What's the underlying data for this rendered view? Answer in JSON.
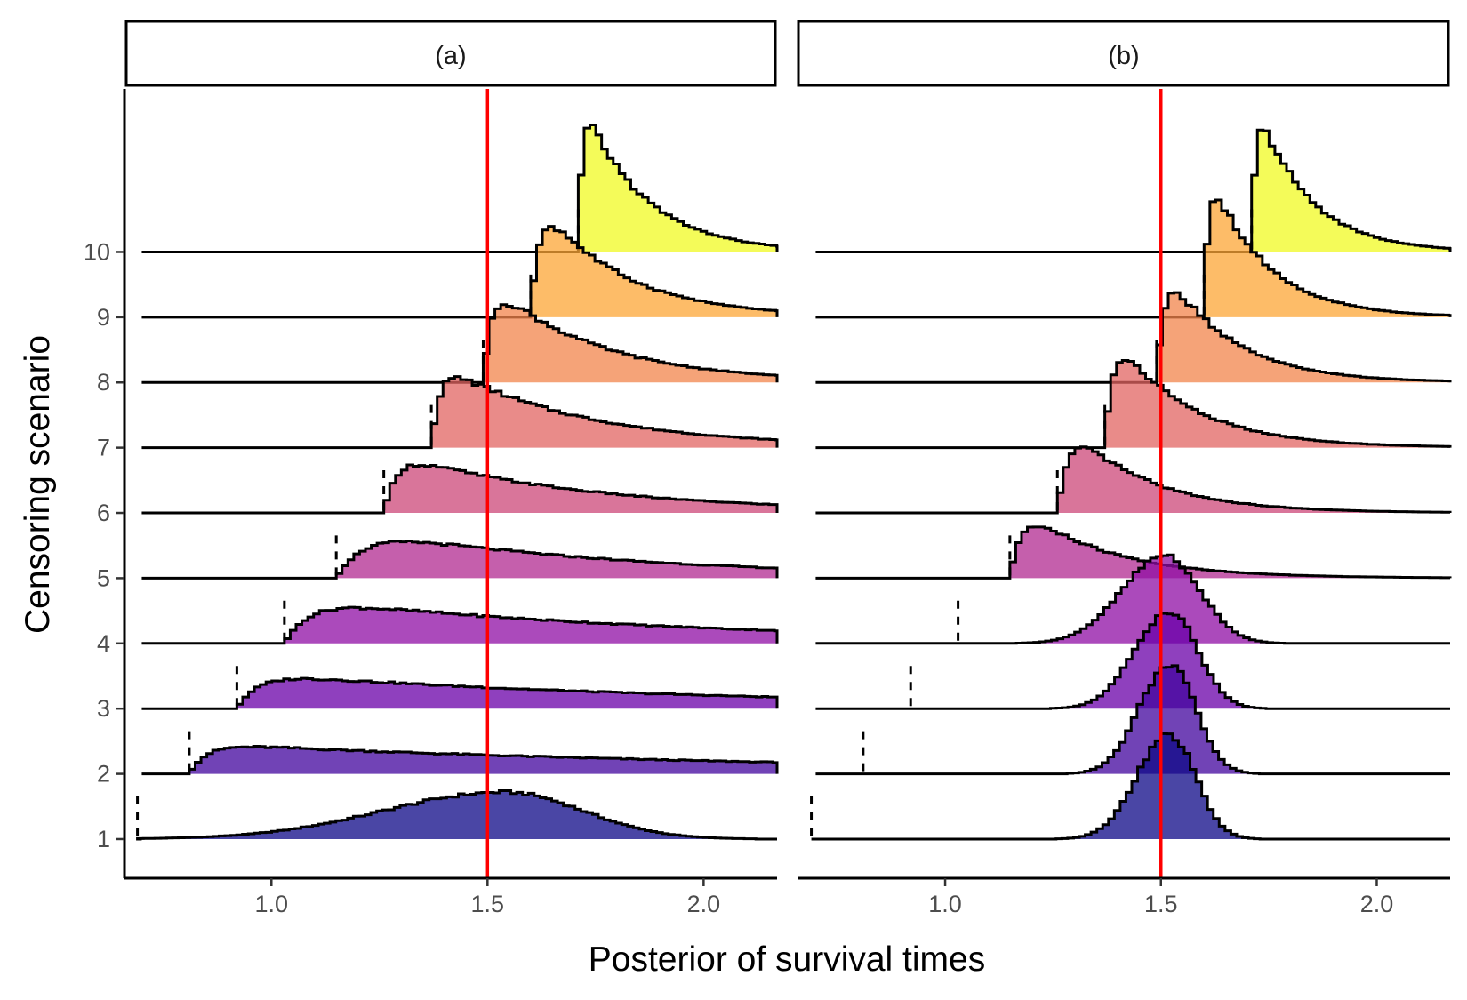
{
  "chart_data": {
    "type": "ridgeline-histogram",
    "xlabel": "Posterior of survival times",
    "ylabel": "Censoring scenario",
    "xlim": [
      0.66,
      2.17
    ],
    "x_ticks": [
      "1.0",
      "1.5",
      "2.0"
    ],
    "x_tick_values": [
      1.0,
      1.5,
      2.0
    ],
    "y_ticks": [
      "1",
      "2",
      "3",
      "4",
      "5",
      "6",
      "7",
      "8",
      "9",
      "10"
    ],
    "y_tick_values": [
      1,
      2,
      3,
      4,
      5,
      6,
      7,
      8,
      9,
      10
    ],
    "ylim": [
      0.4,
      12.5
    ],
    "reference_line": {
      "x": 1.5,
      "color": "#ff0000"
    },
    "xmin_line": 0.7,
    "colors": {
      "1": "#0d0887",
      "2": "#41049d",
      "3": "#6a00a8",
      "4": "#8f0da4",
      "5": "#b12a90",
      "6": "#cc4778",
      "7": "#e16462",
      "8": "#f2844b",
      "9": "#fca636",
      "10": "#f0f921"
    },
    "fill_opacity": 0.75,
    "panels": [
      {
        "strip": "(a)",
        "series": [
          {
            "scenario": 1,
            "lower": 0.69,
            "truncated": false,
            "mode": 1.54,
            "height": 0.72,
            "width_left": 0.28,
            "width_right": 0.18
          },
          {
            "scenario": 2,
            "lower": 0.81,
            "truncated": true,
            "height": 0.47,
            "rise": 0.04,
            "decay": 1.4
          },
          {
            "scenario": 3,
            "lower": 0.92,
            "truncated": true,
            "height": 0.55,
            "rise": 0.05,
            "decay": 1.1
          },
          {
            "scenario": 4,
            "lower": 1.03,
            "truncated": true,
            "height": 0.7,
            "rise": 0.06,
            "decay": 0.9
          },
          {
            "scenario": 5,
            "lower": 1.15,
            "truncated": true,
            "height": 0.8,
            "rise": 0.07,
            "decay": 0.62
          },
          {
            "scenario": 6,
            "lower": 1.26,
            "truncated": true,
            "height": 0.95,
            "rise": 0.03,
            "decay": 0.45
          },
          {
            "scenario": 7,
            "lower": 1.37,
            "truncated": true,
            "height": 1.35,
            "rise": 0.02,
            "decay": 0.33
          },
          {
            "scenario": 8,
            "lower": 1.49,
            "truncated": true,
            "height": 1.62,
            "rise": 0.02,
            "decay": 0.25
          },
          {
            "scenario": 9,
            "lower": 1.6,
            "truncated": true,
            "height": 1.97,
            "rise": 0.02,
            "decay": 0.19
          },
          {
            "scenario": 10,
            "lower": 1.71,
            "truncated": true,
            "height": 2.48,
            "rise": 0.01,
            "decay": 0.14
          }
        ]
      },
      {
        "strip": "(b)",
        "series": [
          {
            "scenario": 1,
            "lower": 0.69,
            "truncated": false,
            "mode": 1.52,
            "height": 1.6,
            "width_left": 0.075,
            "width_right": 0.06
          },
          {
            "scenario": 2,
            "lower": 0.81,
            "truncated": false,
            "mode": 1.52,
            "height": 1.68,
            "width_left": 0.07,
            "width_right": 0.06
          },
          {
            "scenario": 3,
            "lower": 0.92,
            "truncated": false,
            "mode": 1.52,
            "height": 1.5,
            "width_left": 0.08,
            "width_right": 0.065
          },
          {
            "scenario": 4,
            "lower": 1.03,
            "truncated": false,
            "mode": 1.51,
            "height": 1.35,
            "width_left": 0.1,
            "width_right": 0.08
          },
          {
            "scenario": 5,
            "lower": 1.15,
            "truncated": true,
            "height": 1.24,
            "rise": 0.03,
            "decay": 0.2
          },
          {
            "scenario": 6,
            "lower": 1.26,
            "truncated": true,
            "height": 1.58,
            "rise": 0.03,
            "decay": 0.18
          },
          {
            "scenario": 7,
            "lower": 1.37,
            "truncated": true,
            "height": 1.98,
            "rise": 0.02,
            "decay": 0.17
          },
          {
            "scenario": 8,
            "lower": 1.49,
            "truncated": true,
            "height": 2.05,
            "rise": 0.02,
            "decay": 0.15
          },
          {
            "scenario": 9,
            "lower": 1.6,
            "truncated": true,
            "height": 2.45,
            "rise": 0.01,
            "decay": 0.13
          },
          {
            "scenario": 10,
            "lower": 1.71,
            "truncated": true,
            "height": 2.5,
            "rise": 0.01,
            "decay": 0.12
          }
        ]
      }
    ]
  }
}
